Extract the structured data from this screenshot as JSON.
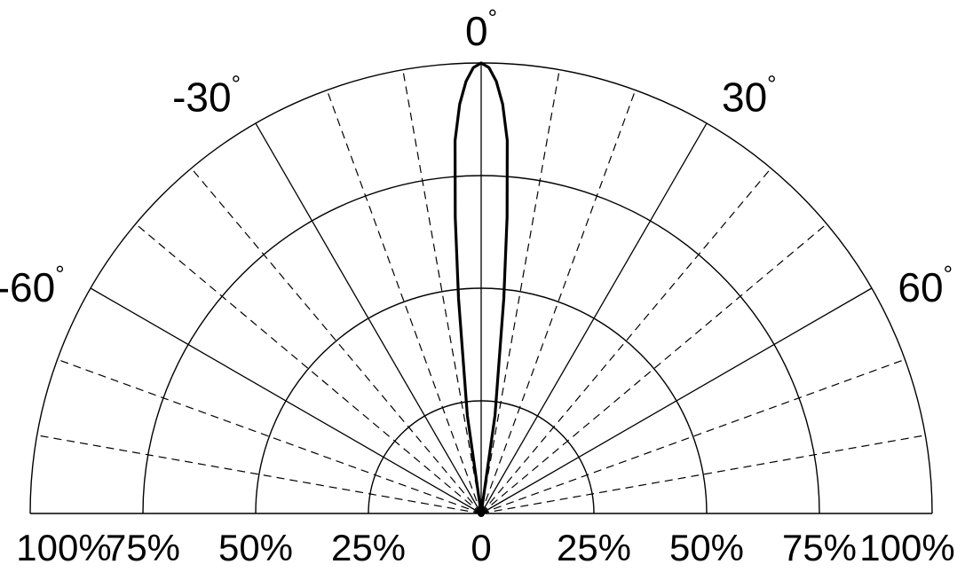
{
  "chart_data": {
    "type": "polar",
    "subtype": "half-polar radiation pattern",
    "title": "",
    "angle_range_deg": [
      -90,
      90
    ],
    "radial_range_percent": [
      0,
      100
    ],
    "radial_ticks_percent": [
      25,
      50,
      75,
      100
    ],
    "solid_spokes_deg": [
      -60,
      -30,
      0,
      30,
      60
    ],
    "dashed_spokes_deg": [
      -80,
      -70,
      -50,
      -40,
      -20,
      -10,
      10,
      20,
      40,
      50,
      70,
      80
    ],
    "angle_labels": [
      {
        "angle": -60,
        "text": "-60",
        "suffix": "°"
      },
      {
        "angle": -30,
        "text": "-30",
        "suffix": "°"
      },
      {
        "angle": 0,
        "text": "0",
        "suffix": "°"
      },
      {
        "angle": 30,
        "text": "30",
        "suffix": "°"
      },
      {
        "angle": 60,
        "text": "60",
        "suffix": "°"
      }
    ],
    "radial_labels": [
      {
        "side": "left",
        "value": 100,
        "text": "100%"
      },
      {
        "side": "left",
        "value": 75,
        "text": "75%"
      },
      {
        "side": "left",
        "value": 50,
        "text": "50%"
      },
      {
        "side": "left",
        "value": 25,
        "text": "25%"
      },
      {
        "side": "center",
        "value": 0,
        "text": "0"
      },
      {
        "side": "right",
        "value": 25,
        "text": "25%"
      },
      {
        "side": "right",
        "value": 50,
        "text": "50%"
      },
      {
        "side": "right",
        "value": 75,
        "text": "75%"
      },
      {
        "side": "right",
        "value": 100,
        "text": "100%"
      }
    ],
    "series": [
      {
        "angle_deg": [
          -90,
          -10,
          -8,
          -6,
          -5,
          -4,
          -3,
          -2,
          -1,
          0,
          1,
          2,
          3,
          4,
          5,
          6,
          8,
          10,
          90
        ],
        "intensity_percent": [
          0,
          0,
          22,
          48,
          66,
          83,
          91,
          96,
          99,
          100,
          99,
          96,
          91,
          83,
          66,
          48,
          22,
          0,
          0
        ]
      }
    ],
    "grid": true
  }
}
